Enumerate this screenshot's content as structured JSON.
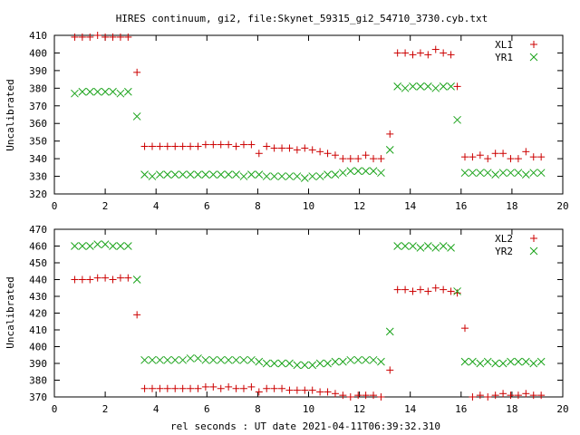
{
  "title": "HIRES continuum, gi2, file:Skynet_59315_gi2_54710_3730.cyb.txt",
  "xlabel": "rel seconds : UT date 2021-04-11T06:39:32.310",
  "colors": {
    "red": "#cc0000",
    "green": "#1aa31a",
    "frame": "#000000"
  },
  "chart_data": [
    {
      "type": "scatter",
      "ylabel": "Uncalibrated",
      "xlim": [
        0,
        20
      ],
      "ylim": [
        320,
        410
      ],
      "xticks": [
        "0",
        "2",
        "4",
        "6",
        "8",
        "10",
        "12",
        "14",
        "16",
        "18",
        "20"
      ],
      "yticks": [
        "320",
        "330",
        "340",
        "350",
        "360",
        "370",
        "380",
        "390",
        "400",
        "410"
      ],
      "legend_position": "top-right",
      "series": [
        {
          "name": "XL1",
          "marker": "plus",
          "color": "#cc0000",
          "x": [
            0.8,
            1.1,
            1.4,
            1.7,
            2.0,
            2.3,
            2.6,
            2.9,
            3.25,
            3.55,
            3.85,
            4.15,
            4.45,
            4.75,
            5.05,
            5.35,
            5.65,
            5.95,
            6.25,
            6.55,
            6.85,
            7.15,
            7.45,
            7.75,
            8.05,
            8.35,
            8.65,
            8.95,
            9.25,
            9.55,
            9.85,
            10.15,
            10.45,
            10.75,
            11.05,
            11.35,
            11.65,
            11.95,
            12.25,
            12.55,
            12.85,
            13.2,
            13.5,
            13.8,
            14.1,
            14.4,
            14.7,
            15.0,
            15.3,
            15.6,
            15.85,
            16.15,
            16.45,
            16.75,
            17.05,
            17.35,
            17.65,
            17.95,
            18.25,
            18.55,
            18.85,
            19.15
          ],
          "y": [
            409,
            409,
            409,
            410,
            409,
            409,
            409,
            409,
            389,
            347,
            347,
            347,
            347,
            347,
            347,
            347,
            347,
            348,
            348,
            348,
            348,
            347,
            348,
            348,
            343,
            347,
            346,
            346,
            346,
            345,
            346,
            345,
            344,
            343,
            342,
            340,
            340,
            340,
            342,
            340,
            340,
            354,
            400,
            400,
            399,
            400,
            399,
            402,
            400,
            399,
            381,
            341,
            341,
            342,
            340,
            343,
            343,
            340,
            340,
            344,
            341,
            341
          ]
        },
        {
          "name": "YR1",
          "marker": "cross",
          "color": "#1aa31a",
          "x": [
            0.8,
            1.1,
            1.4,
            1.7,
            2.0,
            2.3,
            2.6,
            2.9,
            3.25,
            3.55,
            3.85,
            4.15,
            4.45,
            4.75,
            5.05,
            5.35,
            5.65,
            5.95,
            6.25,
            6.55,
            6.85,
            7.15,
            7.45,
            7.75,
            8.05,
            8.35,
            8.65,
            8.95,
            9.25,
            9.55,
            9.85,
            10.15,
            10.45,
            10.75,
            11.05,
            11.35,
            11.65,
            11.95,
            12.25,
            12.55,
            12.85,
            13.2,
            13.5,
            13.8,
            14.1,
            14.4,
            14.7,
            15.0,
            15.3,
            15.6,
            15.85,
            16.15,
            16.45,
            16.75,
            17.05,
            17.35,
            17.65,
            17.95,
            18.25,
            18.55,
            18.85,
            19.15
          ],
          "y": [
            377,
            378,
            378,
            378,
            378,
            378,
            377,
            378,
            364,
            331,
            330,
            331,
            331,
            331,
            331,
            331,
            331,
            331,
            331,
            331,
            331,
            331,
            330,
            331,
            331,
            330,
            330,
            330,
            330,
            330,
            329,
            330,
            330,
            331,
            331,
            332,
            333,
            333,
            333,
            333,
            332,
            345,
            381,
            380,
            381,
            381,
            381,
            380,
            381,
            381,
            362,
            332,
            332,
            332,
            332,
            331,
            332,
            332,
            332,
            331,
            332,
            332
          ]
        }
      ]
    },
    {
      "type": "scatter",
      "ylabel": "Uncalibrated",
      "xlim": [
        0,
        20
      ],
      "ylim": [
        370,
        470
      ],
      "xticks": [
        "0",
        "2",
        "4",
        "6",
        "8",
        "10",
        "12",
        "14",
        "16",
        "18",
        "20"
      ],
      "yticks": [
        "370",
        "380",
        "390",
        "400",
        "410",
        "420",
        "430",
        "440",
        "450",
        "460",
        "470"
      ],
      "legend_position": "top-right",
      "series": [
        {
          "name": "XL2",
          "marker": "plus",
          "color": "#cc0000",
          "x": [
            0.8,
            1.1,
            1.4,
            1.7,
            2.0,
            2.3,
            2.6,
            2.9,
            3.25,
            3.55,
            3.85,
            4.15,
            4.45,
            4.75,
            5.05,
            5.35,
            5.65,
            5.95,
            6.25,
            6.55,
            6.85,
            7.15,
            7.45,
            7.75,
            8.05,
            8.35,
            8.65,
            8.95,
            9.25,
            9.55,
            9.85,
            10.15,
            10.45,
            10.75,
            11.05,
            11.35,
            11.65,
            11.95,
            12.25,
            12.55,
            12.85,
            13.2,
            13.5,
            13.8,
            14.1,
            14.4,
            14.7,
            15.0,
            15.3,
            15.6,
            15.85,
            16.15,
            16.45,
            16.75,
            17.05,
            17.35,
            17.65,
            17.95,
            18.25,
            18.55,
            18.85,
            19.15
          ],
          "y": [
            440,
            440,
            440,
            441,
            441,
            440,
            441,
            441,
            419,
            375,
            375,
            375,
            375,
            375,
            375,
            375,
            375,
            376,
            376,
            375,
            376,
            375,
            375,
            376,
            373,
            375,
            375,
            375,
            374,
            374,
            374,
            374,
            373,
            373,
            372,
            371,
            370,
            371,
            371,
            371,
            370,
            386,
            434,
            434,
            433,
            434,
            433,
            435,
            434,
            433,
            432,
            411,
            370,
            371,
            370,
            371,
            372,
            371,
            371,
            372,
            371,
            371
          ],
          "x2": [
            0.8,
            1.1,
            1.4,
            1.7,
            2.0,
            2.3,
            2.6,
            2.9,
            3.25,
            3.55,
            3.85,
            4.15,
            4.45,
            4.75,
            5.05,
            5.35,
            5.65,
            5.95,
            6.25,
            6.55,
            6.85,
            7.15,
            7.45,
            7.75,
            8.05,
            8.35,
            8.65,
            8.95,
            9.25,
            9.55,
            9.85,
            10.15,
            10.45,
            10.75,
            11.05,
            11.35,
            11.65,
            11.95,
            12.25,
            12.55,
            12.85,
            13.2,
            13.5,
            13.8,
            14.1,
            14.4,
            14.7,
            15.0,
            15.3,
            15.6,
            15.85,
            15.9,
            16.15,
            16.45,
            16.75,
            17.05,
            17.35,
            17.65,
            17.95,
            18.25,
            18.55,
            18.85
          ]
        },
        {
          "name": "YR2",
          "marker": "cross",
          "color": "#1aa31a",
          "x": [
            0.8,
            1.1,
            1.4,
            1.7,
            2.0,
            2.3,
            2.6,
            2.9,
            3.25,
            3.55,
            3.85,
            4.15,
            4.45,
            4.75,
            5.05,
            5.35,
            5.65,
            5.95,
            6.25,
            6.55,
            6.85,
            7.15,
            7.45,
            7.75,
            8.05,
            8.35,
            8.65,
            8.95,
            9.25,
            9.55,
            9.85,
            10.15,
            10.45,
            10.75,
            11.05,
            11.35,
            11.65,
            11.95,
            12.25,
            12.55,
            12.85,
            13.2,
            13.5,
            13.8,
            14.1,
            14.4,
            14.7,
            15.0,
            15.3,
            15.6,
            15.85,
            16.15,
            16.45,
            16.75,
            17.05,
            17.35,
            17.65,
            17.95,
            18.25,
            18.55,
            18.85,
            19.15
          ],
          "y": [
            460,
            460,
            460,
            461,
            461,
            460,
            460,
            460,
            440,
            392,
            392,
            392,
            392,
            392,
            392,
            393,
            393,
            392,
            392,
            392,
            392,
            392,
            392,
            392,
            391,
            390,
            390,
            390,
            390,
            389,
            389,
            389,
            390,
            390,
            391,
            391,
            392,
            392,
            392,
            392,
            391,
            409,
            460,
            460,
            460,
            459,
            460,
            459,
            460,
            459,
            433,
            391,
            391,
            390,
            391,
            390,
            390,
            391,
            391,
            391,
            390,
            391
          ]
        }
      ]
    }
  ]
}
